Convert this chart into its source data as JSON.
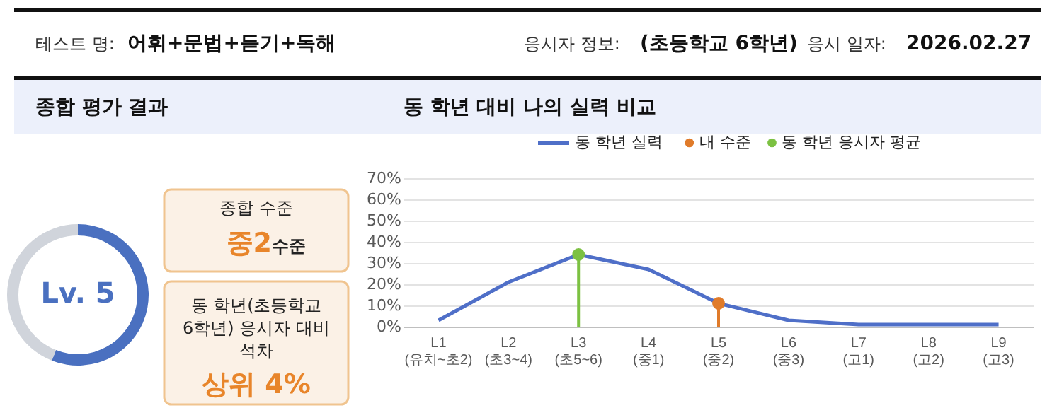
{
  "chart_data": [
    {
      "type": "other",
      "annotations": [
        "테스트 명:",
        "어휘+문법+듣기+독해",
        "응시자 정보:",
        "(초등학교 6학년)",
        "응시 일자:",
        "2026.02.27"
      ]
    },
    {
      "type": "donut",
      "title": "종합 평가 결과",
      "categories": [
        null,
        null
      ],
      "values": [
        56,
        44
      ],
      "colors": [
        "#4a70c0",
        "#d0d4db"
      ],
      "annotations": [
        "Lv. 5"
      ]
    },
    {
      "type": "other",
      "annotations": [
        "종합 수준",
        "중2",
        "수준",
        "동 학년(초등학교\n6학년) 응시자 대비\n석차",
        "상위 4%"
      ]
    },
    {
      "type": "line",
      "title": "동 학년 대비 나의 실력 비교",
      "categories": [
        "L1\n(유치~초2)",
        "L2\n(초3~4)",
        "L3\n(초5~6)",
        "L4\n(중1)",
        "L5\n(중2)",
        "L6\n(중3)",
        "L7\n(고1)",
        "L8\n(고2)",
        "L9\n(고3)"
      ],
      "series": [
        {
          "name": "동 학년 실력",
          "type": "line",
          "color": "#4f6fc8",
          "values": [
            3,
            21,
            34,
            27,
            11,
            3,
            1,
            1,
            1
          ]
        },
        {
          "name": "내 수준",
          "type": "lollipop",
          "color": "#e07b2a",
          "values": [
            null,
            null,
            null,
            null,
            11,
            null,
            null,
            null,
            null
          ]
        },
        {
          "name": "동 학년 응시자 평균",
          "type": "lollipop",
          "color": "#7cc142",
          "values": [
            null,
            null,
            34,
            null,
            null,
            null,
            null,
            null,
            null
          ]
        }
      ],
      "ylim": [
        0,
        70
      ],
      "yticks": [
        {
          "value": 0,
          "label": "0%"
        },
        {
          "value": 10,
          "label": "10%"
        },
        {
          "value": 20,
          "label": "20%"
        },
        {
          "value": 30,
          "label": "30%"
        },
        {
          "value": 40,
          "label": "40%"
        },
        {
          "value": 50,
          "label": "50%"
        },
        {
          "value": 60,
          "label": "60%"
        },
        {
          "value": 70,
          "label": "70%"
        }
      ],
      "grid": "y",
      "legend": "top right"
    }
  ]
}
